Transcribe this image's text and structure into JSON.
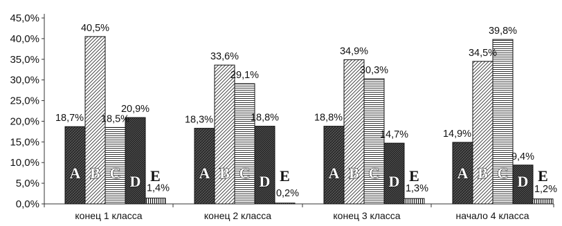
{
  "chart_data": {
    "type": "bar",
    "categories": [
      "конец 1 класса",
      "конец 2 класса",
      "конец 3 класса",
      "начало 4 класса"
    ],
    "series": [
      {
        "name": "A",
        "values": [
          18.7,
          18.3,
          18.8,
          14.9
        ],
        "labels": [
          "18,7%",
          "18,3%",
          "18,8%",
          "14,9%"
        ]
      },
      {
        "name": "B",
        "values": [
          40.5,
          33.6,
          34.9,
          34.5
        ],
        "labels": [
          "40,5%",
          "33,6%",
          "34,9%",
          "34,5%"
        ]
      },
      {
        "name": "C",
        "values": [
          18.5,
          29.1,
          30.3,
          39.8
        ],
        "labels": [
          "18,5%",
          "29,1%",
          "30,3%",
          "39,8%"
        ]
      },
      {
        "name": "D",
        "values": [
          20.9,
          18.8,
          14.7,
          9.4
        ],
        "labels": [
          "20,9%",
          "18,8%",
          "14,7%",
          "9,4%"
        ]
      },
      {
        "name": "E",
        "values": [
          1.4,
          0.2,
          1.3,
          1.2
        ],
        "labels": [
          "1,4%",
          "0,2%",
          "1,3%",
          "1,2%"
        ]
      }
    ],
    "ylim": [
      0,
      45
    ],
    "y_ticks": [
      0,
      5,
      10,
      15,
      20,
      25,
      30,
      35,
      40,
      45
    ],
    "y_tick_labels": [
      "0,0%",
      "5,0%",
      "10,0%",
      "15,0%",
      "20,0%",
      "25,0%",
      "30,0%",
      "35,0%",
      "40,0%",
      "45,0%"
    ],
    "title": "",
    "xlabel": "",
    "ylabel": "",
    "grid": false,
    "legend": "none",
    "colors": {
      "bar_stroke": "#111111",
      "axis": "#333333",
      "background": "#ffffff"
    }
  }
}
